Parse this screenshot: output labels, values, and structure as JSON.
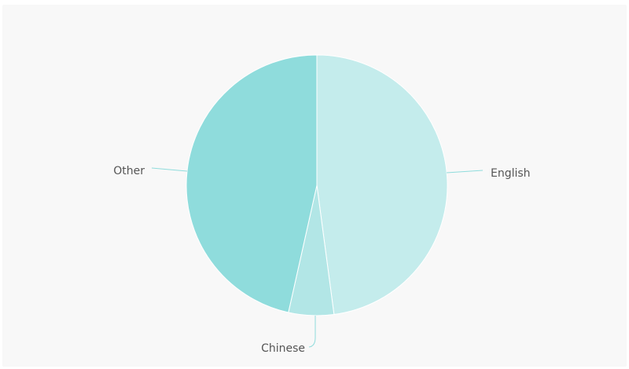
{
  "chart_data": {
    "type": "pie",
    "title": "",
    "slices": [
      {
        "label": "English",
        "value": 47.9,
        "color": "#c4ecec"
      },
      {
        "label": "Chinese",
        "value": 5.6,
        "color": "#b2e6e6"
      },
      {
        "label": "Other",
        "value": 46.5,
        "color": "#8fdcdc"
      }
    ],
    "leader_line_color": "#8fdcdc",
    "background": "#f8f8f8"
  }
}
